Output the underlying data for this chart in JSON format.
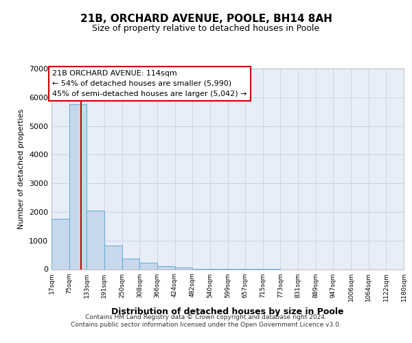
{
  "title_line1": "21B, ORCHARD AVENUE, POOLE, BH14 8AH",
  "title_line2": "Size of property relative to detached houses in Poole",
  "xlabel": "Distribution of detached houses by size in Poole",
  "ylabel": "Number of detached properties",
  "bin_labels": [
    "17sqm",
    "75sqm",
    "133sqm",
    "191sqm",
    "250sqm",
    "308sqm",
    "366sqm",
    "424sqm",
    "482sqm",
    "540sqm",
    "599sqm",
    "657sqm",
    "715sqm",
    "773sqm",
    "831sqm",
    "889sqm",
    "947sqm",
    "1006sqm",
    "1064sqm",
    "1122sqm",
    "1180sqm"
  ],
  "bin_edges": [
    17,
    75,
    133,
    191,
    250,
    308,
    366,
    424,
    482,
    540,
    599,
    657,
    715,
    773,
    831,
    889,
    947,
    1006,
    1064,
    1122,
    1180
  ],
  "bar_values": [
    1750,
    5750,
    2050,
    820,
    370,
    230,
    100,
    50,
    20,
    10,
    5,
    2,
    1,
    0,
    0,
    0,
    0,
    0,
    0,
    0
  ],
  "bar_color": "#c8d8eb",
  "bar_edge_color": "#6baed6",
  "grid_color": "#c8d4e8",
  "background_color": "#e8eef8",
  "vline_x": 114,
  "vline_color": "#cc0000",
  "annotation_line1": "21B ORCHARD AVENUE: 114sqm",
  "annotation_line2": "← 54% of detached houses are smaller (5,990)",
  "annotation_line3": "45% of semi-detached houses are larger (5,042) →",
  "annotation_box_edgecolor": "#cc0000",
  "ylim": [
    0,
    7000
  ],
  "yticks": [
    0,
    1000,
    2000,
    3000,
    4000,
    5000,
    6000,
    7000
  ],
  "footer_line1": "Contains HM Land Registry data © Crown copyright and database right 2024.",
  "footer_line2": "Contains public sector information licensed under the Open Government Licence v3.0."
}
